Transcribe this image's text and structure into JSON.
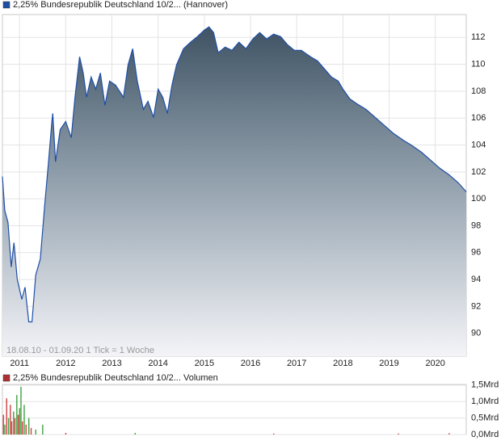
{
  "chart_data": [
    {
      "type": "area",
      "series": [
        {
          "name": "2,25% Bundesrepublik Deutschland 10/2... (Hannover)",
          "color": "#1e4fa8",
          "x": [
            2010.63,
            2010.68,
            2010.75,
            2010.82,
            2010.88,
            2010.95,
            2011.05,
            2011.12,
            2011.2,
            2011.27,
            2011.35,
            2011.45,
            2011.55,
            2011.62,
            2011.7,
            2011.72,
            2011.78,
            2011.88,
            2012.0,
            2012.12,
            2012.2,
            2012.3,
            2012.38,
            2012.45,
            2012.55,
            2012.65,
            2012.75,
            2012.85,
            2012.95,
            2013.08,
            2013.25,
            2013.35,
            2013.45,
            2013.55,
            2013.68,
            2013.78,
            2013.9,
            2014.0,
            2014.1,
            2014.2,
            2014.3,
            2014.4,
            2014.55,
            2014.7,
            2014.85,
            2015.0,
            2015.1,
            2015.2,
            2015.3,
            2015.45,
            2015.6,
            2015.75,
            2015.9,
            2016.05,
            2016.2,
            2016.35,
            2016.5,
            2016.65,
            2016.8,
            2016.95,
            2017.1,
            2017.3,
            2017.45,
            2017.6,
            2017.75,
            2017.9,
            2018.0,
            2018.15,
            2018.3,
            2018.5,
            2018.7,
            2018.9,
            2019.1,
            2019.3,
            2019.5,
            2019.7,
            2019.9,
            2020.1,
            2020.3,
            2020.5,
            2020.67
          ],
          "values": [
            101.66,
            99.14,
            98.24,
            94.93,
            96.74,
            94.03,
            92.53,
            93.43,
            90.85,
            90.85,
            94.33,
            95.53,
            99.74,
            102.44,
            105.75,
            106.35,
            102.75,
            105.15,
            105.75,
            104.55,
            107.55,
            110.56,
            109.36,
            107.55,
            109.06,
            108.15,
            109.36,
            106.95,
            108.75,
            108.45,
            107.55,
            109.96,
            111.16,
            108.75,
            106.65,
            107.25,
            106.05,
            108.15,
            107.55,
            106.35,
            108.45,
            109.96,
            111.16,
            111.64,
            112.06,
            112.54,
            112.78,
            112.36,
            110.86,
            111.28,
            111.04,
            111.64,
            111.16,
            111.88,
            112.36,
            111.88,
            112.24,
            112.06,
            111.46,
            111.04,
            111.04,
            110.56,
            110.26,
            109.66,
            109.06,
            108.75,
            108.15,
            107.43,
            107.07,
            106.65,
            106.05,
            105.45,
            104.85,
            104.37,
            103.95,
            103.47,
            102.87,
            102.27,
            101.78,
            101.18,
            100.52
          ]
        }
      ],
      "xlim": [
        2010.63,
        2020.67
      ],
      "xticks": [
        2011,
        2012,
        2013,
        2014,
        2015,
        2016,
        2017,
        2018,
        2019,
        2020
      ],
      "ylim": [
        88.3,
        113.7
      ],
      "yticks": [
        90,
        92,
        94,
        96,
        98,
        100,
        102,
        104,
        106,
        108,
        110,
        112
      ],
      "grid": true,
      "note": "18.08.10 - 01.09.20   1 Tick = 1 Woche"
    },
    {
      "type": "bar",
      "series": [
        {
          "name": "2,25% Bundesrepublik Deutschland 10/2... Volumen",
          "color": "#b03030",
          "x": [
            2010.65,
            2010.68,
            2010.72,
            2010.76,
            2010.8,
            2010.83,
            2010.87,
            2010.9,
            2010.94,
            2010.97,
            2011.0,
            2011.03,
            2011.06,
            2011.1,
            2011.14,
            2011.2,
            2011.25,
            2011.35,
            2011.5,
            2012.0,
            2013.5,
            2016.5,
            2019.2,
            2020.3
          ],
          "values": [
            0.6,
            0.3,
            1.1,
            0.5,
            0.9,
            0.4,
            0.7,
            0.5,
            1.2,
            0.6,
            0.8,
            1.45,
            0.4,
            0.9,
            0.3,
            0.5,
            0.2,
            0.15,
            0.3,
            0.05,
            0.05,
            0.03,
            0.03,
            0.04
          ],
          "colors": [
            "#d04040",
            "#40a040",
            "#d04040",
            "#40a040",
            "#d04040",
            "#d04040",
            "#40a040",
            "#d04040",
            "#40a040",
            "#d04040",
            "#40a040",
            "#40a040",
            "#d04040",
            "#40a040",
            "#d04040",
            "#40a040",
            "#d04040",
            "#40a040",
            "#40a040",
            "#d04040",
            "#40a040",
            "#d04040",
            "#d04040",
            "#d04040"
          ]
        }
      ],
      "xlim": [
        2010.63,
        2020.67
      ],
      "ylim": [
        0,
        1.52
      ],
      "yticks": [
        {
          "value": 0,
          "label": "0,0Mrd"
        },
        {
          "value": 0.5,
          "label": "0,5Mrd"
        },
        {
          "value": 1.0,
          "label": "1,0Mrd"
        },
        {
          "value": 1.5,
          "label": "1,5Mrd"
        }
      ],
      "grid": true
    }
  ]
}
